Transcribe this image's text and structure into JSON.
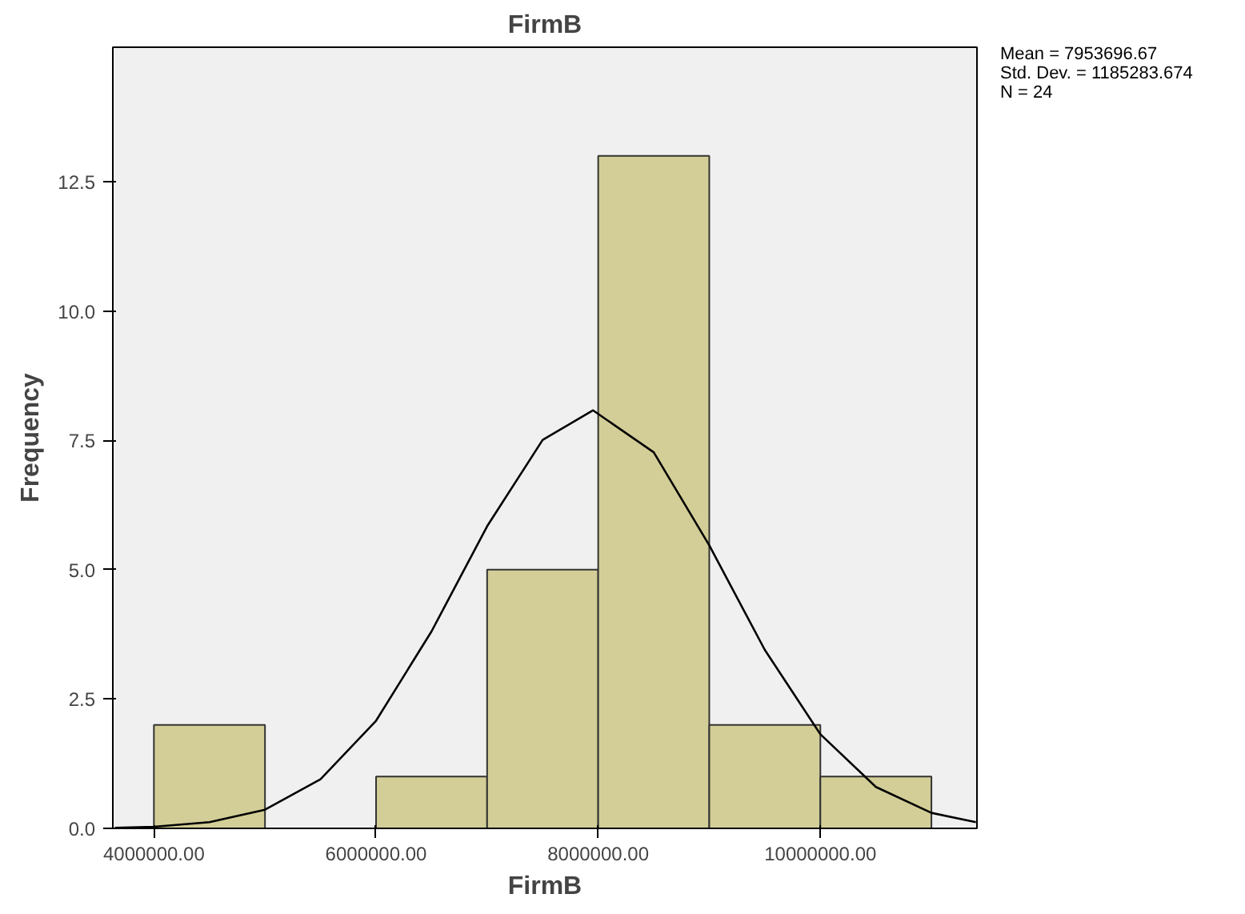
{
  "chart_data": {
    "type": "histogram",
    "title": "FirmB",
    "xlabel": "FirmB",
    "ylabel": "Frequency",
    "bins": [
      4000000,
      5000000,
      6000000,
      7000000,
      8000000,
      9000000,
      10000000,
      11000000
    ],
    "values": [
      2,
      0,
      1,
      5,
      13,
      2,
      1
    ],
    "color": "#d3ce97",
    "series": [
      {
        "type": "line",
        "color": "#000000",
        "x": [
          3650000,
          4000000,
          4500000,
          5000000,
          5500000,
          6000000,
          6500000,
          7000000,
          7500000,
          7954000,
          8500000,
          9000000,
          9500000,
          10000000,
          10500000,
          11000000,
          11400000
        ],
        "values": [
          0.01,
          0.03,
          0.12,
          0.36,
          0.95,
          2.08,
          3.81,
          5.84,
          7.51,
          8.08,
          7.27,
          5.47,
          3.45,
          1.82,
          0.8,
          0.3,
          0.12
        ]
      }
    ],
    "xlim": [
      3630000,
      11410000
    ],
    "ylim": [
      0,
      15.1
    ],
    "xticks": [
      {
        "value": 4000000,
        "label": "4000000.00"
      },
      {
        "value": 6000000,
        "label": "6000000.00"
      },
      {
        "value": 8000000,
        "label": "8000000.00"
      },
      {
        "value": 10000000,
        "label": "10000000.00"
      }
    ],
    "yticks": [
      {
        "value": 0,
        "label": "0.0"
      },
      {
        "value": 2.5,
        "label": "2.5"
      },
      {
        "value": 5,
        "label": "5.0"
      },
      {
        "value": 7.5,
        "label": "7.5"
      },
      {
        "value": 10,
        "label": "10.0"
      },
      {
        "value": 12.5,
        "label": "12.5"
      }
    ],
    "grid": false,
    "annotations": [
      "Mean = 7953696.67",
      "Std. Dev. = 1185283.674",
      "N = 24"
    ]
  }
}
